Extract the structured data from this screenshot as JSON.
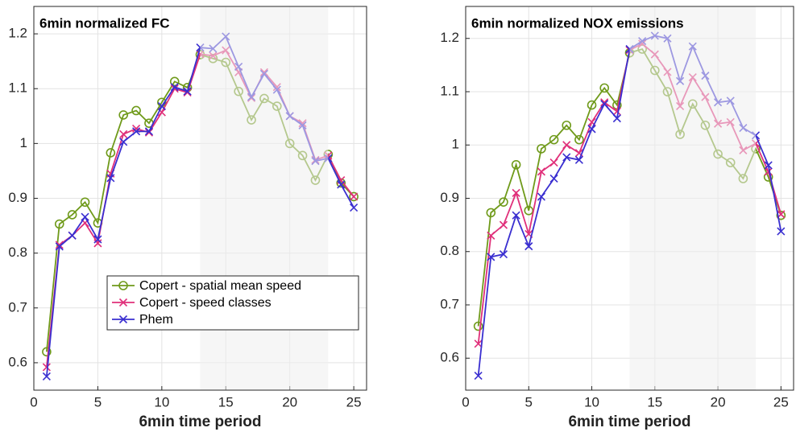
{
  "chart_data": [
    {
      "type": "line",
      "title": "6min normalized FC",
      "xlabel": "6min time period",
      "x": [
        1,
        2,
        3,
        4,
        5,
        6,
        7,
        8,
        9,
        10,
        11,
        12,
        13,
        14,
        15,
        16,
        17,
        18,
        19,
        20,
        21,
        22,
        23,
        24,
        25
      ],
      "series": [
        {
          "name": "Copert - spatial mean speed",
          "color": "#6f9a1a",
          "marker": "circle",
          "values": [
            0.62,
            0.853,
            0.87,
            0.893,
            0.855,
            0.983,
            1.052,
            1.06,
            1.037,
            1.075,
            1.113,
            1.102,
            1.162,
            1.155,
            1.148,
            1.095,
            1.043,
            1.082,
            1.068,
            1.0,
            0.978,
            0.933,
            0.98,
            0.928,
            0.903
          ]
        },
        {
          "name": "Copert - speed classes",
          "color": "#e0307a",
          "marker": "x",
          "values": [
            0.592,
            0.815,
            0.832,
            0.855,
            0.818,
            0.945,
            1.017,
            1.027,
            1.02,
            1.057,
            1.1,
            1.093,
            1.163,
            1.16,
            1.17,
            1.13,
            1.083,
            1.13,
            1.103,
            1.05,
            1.037,
            0.97,
            0.978,
            0.933,
            0.903
          ]
        },
        {
          "name": "Phem",
          "color": "#3a2fd0",
          "marker": "x",
          "values": [
            0.575,
            0.812,
            0.832,
            0.866,
            0.825,
            0.937,
            1.003,
            1.022,
            1.022,
            1.068,
            1.103,
            1.095,
            1.175,
            1.173,
            1.195,
            1.14,
            1.085,
            1.127,
            1.098,
            1.05,
            1.033,
            0.968,
            0.973,
            0.925,
            0.883
          ]
        }
      ],
      "shaded_region": [
        13,
        23
      ],
      "xlim": [
        0,
        26
      ],
      "xticks": [
        0,
        5,
        10,
        15,
        20,
        25
      ],
      "ylim": [
        0.55,
        1.25
      ],
      "yticks": [
        0.6,
        0.7,
        0.8,
        0.9,
        1,
        1.1,
        1.2
      ],
      "grid": true,
      "legend": "lower right"
    },
    {
      "type": "line",
      "title": "6min normalized NOX emissions",
      "xlabel": "6min time period",
      "x": [
        1,
        2,
        3,
        4,
        5,
        6,
        7,
        8,
        9,
        10,
        11,
        12,
        13,
        14,
        15,
        16,
        17,
        18,
        19,
        20,
        21,
        22,
        23,
        24,
        25
      ],
      "series": [
        {
          "color": "#6f9a1a",
          "marker": "circle",
          "values": [
            0.66,
            0.873,
            0.893,
            0.963,
            0.877,
            0.993,
            1.01,
            1.037,
            1.01,
            1.075,
            1.107,
            1.075,
            1.173,
            1.18,
            1.14,
            1.1,
            1.02,
            1.077,
            1.037,
            0.983,
            0.967,
            0.937,
            0.993,
            0.94,
            0.868
          ]
        },
        {
          "color": "#e0307a",
          "marker": "x",
          "values": [
            0.627,
            0.83,
            0.85,
            0.91,
            0.833,
            0.95,
            0.967,
            1.0,
            0.985,
            1.043,
            1.08,
            1.063,
            1.178,
            1.19,
            1.17,
            1.137,
            1.073,
            1.127,
            1.09,
            1.04,
            1.043,
            0.99,
            1.003,
            0.95,
            0.87
          ]
        },
        {
          "color": "#3a2fd0",
          "marker": "x",
          "values": [
            0.567,
            0.79,
            0.795,
            0.868,
            0.81,
            0.903,
            0.937,
            0.977,
            0.972,
            1.03,
            1.077,
            1.05,
            1.18,
            1.195,
            1.205,
            1.2,
            1.12,
            1.185,
            1.13,
            1.08,
            1.083,
            1.032,
            1.018,
            0.962,
            0.838
          ]
        }
      ],
      "shaded_region": [
        13,
        23
      ],
      "xlim": [
        0,
        26
      ],
      "xticks": [
        0,
        5,
        10,
        15,
        20,
        25
      ],
      "ylim": [
        0.54,
        1.26
      ],
      "yticks": [
        0.6,
        0.7,
        0.8,
        0.9,
        1,
        1.1,
        1.2
      ],
      "grid": true
    }
  ]
}
